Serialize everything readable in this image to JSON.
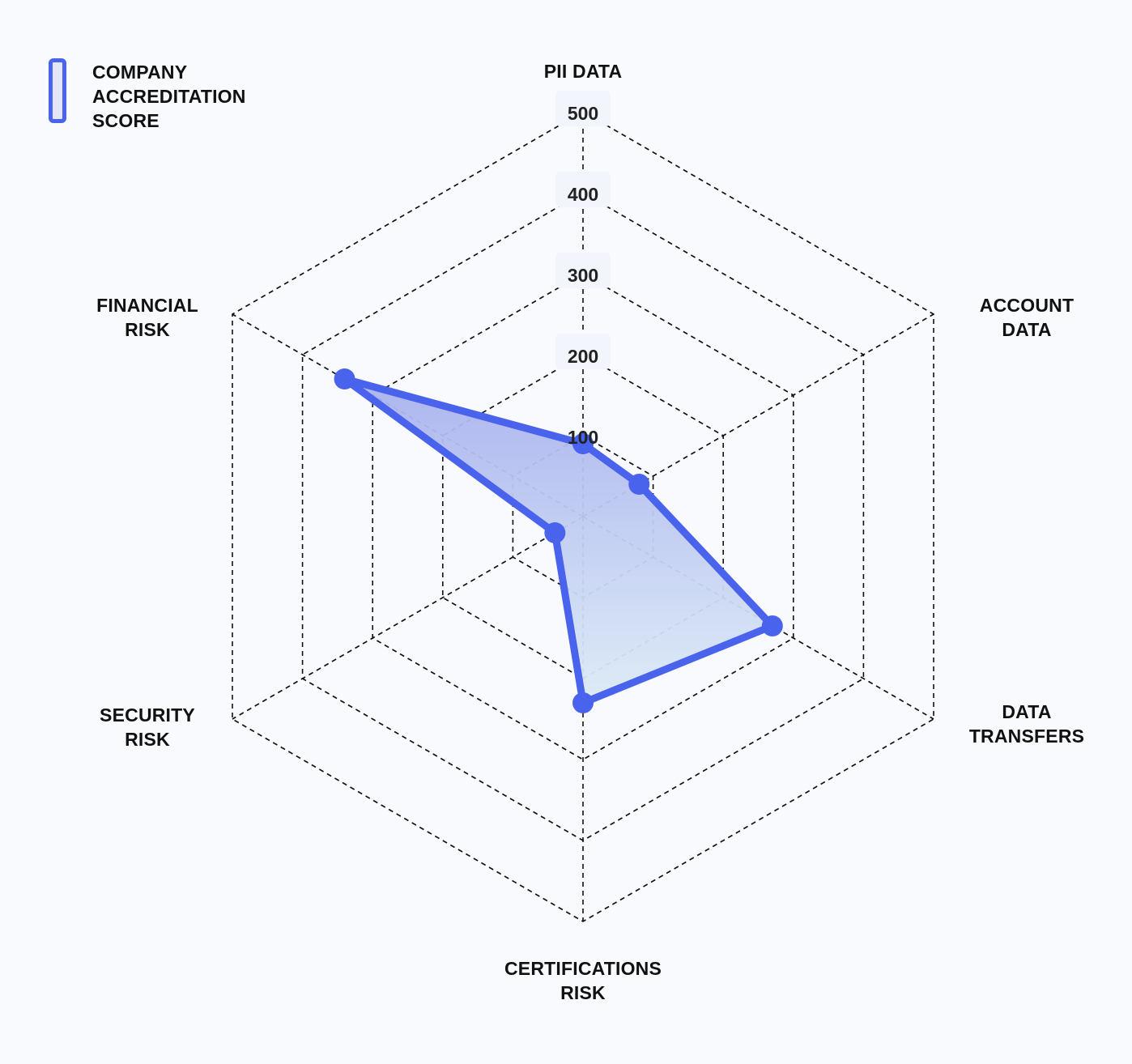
{
  "legend": {
    "label": "COMPANY ACCREDITATION SCORE"
  },
  "chart_data": {
    "type": "radar",
    "axes": [
      "PII DATA",
      "ACCOUNT DATA",
      "DATA TRANSFERS",
      "CERTIFICATIONS RISK",
      "SECURITY RISK",
      "FINANCIAL RISK"
    ],
    "axis_labels_display": [
      "PII DATA",
      "ACCOUNT\nDATA",
      "DATA\nTRANSFERS",
      "CERTIFICATIONS\nRISK",
      "SECURITY\nRISK",
      "FINANCIAL\nRISK"
    ],
    "ticks": [
      100,
      200,
      300,
      400,
      500
    ],
    "rmax": 500,
    "grid": "dashed",
    "legend_position": "top-left",
    "series": [
      {
        "name": "COMPANY ACCREDITATION SCORE",
        "values": [
          90,
          80,
          270,
          230,
          40,
          340
        ],
        "stroke": "#4a63ec",
        "fill_top": "#a9b2ee",
        "fill_bottom": "#dcebf6"
      }
    ]
  }
}
